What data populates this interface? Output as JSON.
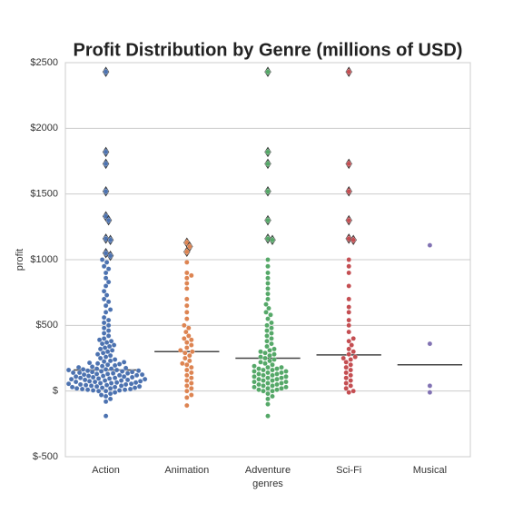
{
  "chart_data": {
    "type": "swarm",
    "title": "Profit Distribution by Genre (millions of USD)",
    "x_label": "genres",
    "y_label": "profit",
    "categories": [
      "Action",
      "Animation",
      "Adventure",
      "Sci-Fi",
      "Musical"
    ],
    "colors": [
      "#4c72b0",
      "#dd8452",
      "#55a868",
      "#c44e52",
      "#8172b3"
    ],
    "ylim": [
      -500,
      2500
    ],
    "yticks": [
      {
        "value": -500,
        "label": "$-500"
      },
      {
        "value": 0,
        "label": "$"
      },
      {
        "value": 500,
        "label": "$500"
      },
      {
        "value": 1000,
        "label": "$1000"
      },
      {
        "value": 1500,
        "label": "$1500"
      },
      {
        "value": 2000,
        "label": "$2000"
      },
      {
        "value": 2500,
        "label": "$2500"
      }
    ],
    "grid": true,
    "medians": [
      160,
      300,
      250,
      275,
      200
    ],
    "points": [
      [
        -190,
        -80,
        -60,
        -40,
        -30,
        -20,
        -10,
        0,
        0,
        5,
        5,
        10,
        10,
        15,
        15,
        20,
        20,
        25,
        25,
        30,
        30,
        35,
        35,
        40,
        40,
        45,
        45,
        50,
        50,
        55,
        55,
        60,
        60,
        65,
        65,
        70,
        70,
        75,
        75,
        80,
        80,
        85,
        85,
        90,
        90,
        95,
        95,
        100,
        100,
        105,
        105,
        110,
        110,
        115,
        115,
        120,
        120,
        125,
        125,
        130,
        130,
        135,
        135,
        140,
        140,
        145,
        145,
        150,
        150,
        155,
        155,
        160,
        160,
        165,
        165,
        170,
        170,
        175,
        180,
        185,
        190,
        195,
        200,
        205,
        210,
        215,
        220,
        225,
        230,
        240,
        250,
        260,
        270,
        280,
        290,
        300,
        310,
        320,
        330,
        340,
        350,
        360,
        370,
        380,
        390,
        400,
        420,
        440,
        460,
        480,
        500,
        520,
        540,
        560,
        600,
        620,
        650,
        680,
        700,
        730,
        760,
        800,
        830,
        860,
        900,
        930,
        950,
        980,
        1000
      ],
      [
        -110,
        -50,
        -30,
        0,
        20,
        40,
        60,
        80,
        100,
        120,
        140,
        160,
        180,
        200,
        210,
        230,
        250,
        270,
        290,
        300,
        310,
        330,
        350,
        370,
        390,
        400,
        420,
        450,
        480,
        500,
        550,
        600,
        650,
        700,
        780,
        820,
        860,
        880,
        900,
        980
      ],
      [
        -190,
        -100,
        -60,
        -40,
        -20,
        0,
        0,
        10,
        10,
        20,
        20,
        30,
        30,
        40,
        40,
        50,
        50,
        60,
        60,
        70,
        70,
        80,
        80,
        90,
        90,
        100,
        100,
        110,
        110,
        120,
        120,
        130,
        130,
        140,
        140,
        150,
        150,
        160,
        160,
        170,
        170,
        180,
        180,
        190,
        200,
        210,
        220,
        230,
        240,
        250,
        260,
        270,
        280,
        290,
        300,
        310,
        320,
        340,
        360,
        380,
        400,
        420,
        440,
        460,
        480,
        500,
        520,
        550,
        580,
        600,
        630,
        660,
        700,
        740,
        780,
        820,
        860,
        900,
        950,
        1000
      ],
      [
        -10,
        0,
        20,
        40,
        60,
        80,
        100,
        120,
        140,
        160,
        180,
        200,
        220,
        240,
        250,
        260,
        280,
        300,
        320,
        350,
        380,
        400,
        450,
        500,
        540,
        600,
        640,
        700,
        800,
        900,
        950,
        1000
      ],
      [
        1110,
        360,
        40,
        -10
      ]
    ],
    "outliers": [
      [
        2430,
        1820,
        1730,
        1520,
        1330,
        1300,
        1160,
        1150,
        1050,
        1030
      ],
      [
        1130,
        1100,
        1060
      ],
      [
        2430,
        1820,
        1730,
        1520,
        1300,
        1160,
        1150
      ],
      [
        2430,
        1730,
        1520,
        1300,
        1160,
        1150
      ],
      []
    ]
  }
}
